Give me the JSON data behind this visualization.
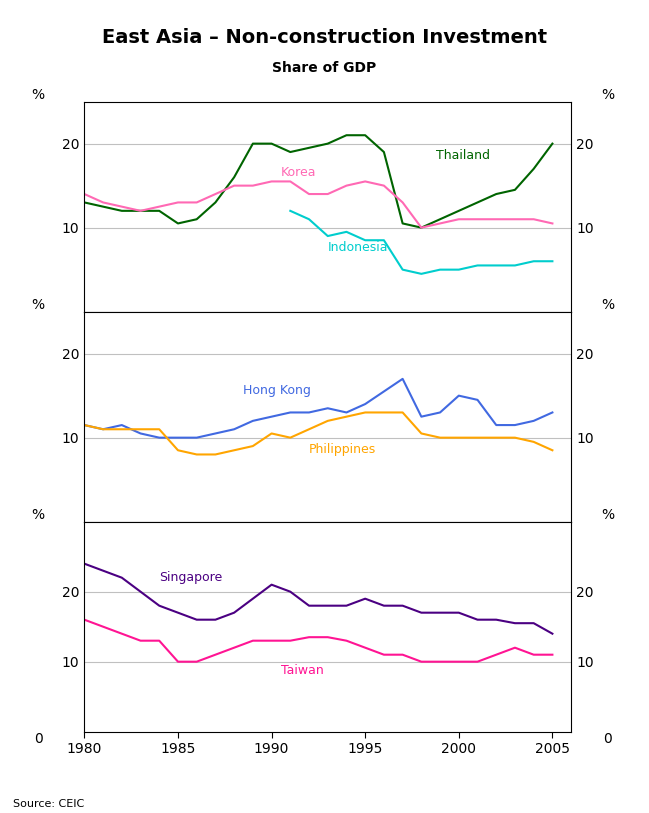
{
  "title": "East Asia – Non-construction Investment",
  "subtitle": "Share of GDP",
  "source": "Source: CEIC",
  "years": [
    1980,
    1981,
    1982,
    1983,
    1984,
    1985,
    1986,
    1987,
    1988,
    1989,
    1990,
    1991,
    1992,
    1993,
    1994,
    1995,
    1996,
    1997,
    1998,
    1999,
    2000,
    2001,
    2002,
    2003,
    2004,
    2005
  ],
  "thailand": [
    13,
    12.5,
    12,
    12,
    12,
    10.5,
    11,
    13,
    16,
    20,
    20,
    19,
    19.5,
    20,
    21,
    21,
    19,
    10.5,
    10,
    11,
    12,
    13,
    14,
    14.5,
    17,
    20
  ],
  "korea": [
    14,
    13,
    12.5,
    12,
    12.5,
    13,
    13,
    14,
    15,
    15,
    15.5,
    15.5,
    14,
    14,
    15,
    15.5,
    15,
    13,
    10,
    10.5,
    11,
    11,
    11,
    11,
    11,
    10.5
  ],
  "indonesia": [
    null,
    null,
    null,
    null,
    null,
    null,
    null,
    null,
    null,
    null,
    null,
    12,
    11,
    9,
    9.5,
    8.5,
    8.5,
    5,
    4.5,
    5,
    5,
    5.5,
    5.5,
    5.5,
    6,
    6
  ],
  "hong_kong": [
    11.5,
    11,
    11.5,
    10.5,
    10,
    10,
    10,
    10.5,
    11,
    12,
    12.5,
    13,
    13,
    13.5,
    13,
    14,
    15.5,
    17,
    12.5,
    13,
    15,
    14.5,
    11.5,
    11.5,
    12,
    13
  ],
  "philippines": [
    11.5,
    11,
    11,
    11,
    11,
    8.5,
    8,
    8,
    8.5,
    9,
    10.5,
    10,
    11,
    12,
    12.5,
    13,
    13,
    13,
    10.5,
    10,
    10,
    10,
    10,
    10,
    9.5,
    8.5
  ],
  "singapore": [
    24,
    23,
    22,
    20,
    18,
    17,
    16,
    16,
    17,
    19,
    21,
    20,
    18,
    18,
    18,
    19,
    18,
    18,
    17,
    17,
    17,
    16,
    16,
    15.5,
    15.5,
    14
  ],
  "taiwan": [
    16,
    15,
    14,
    13,
    13,
    10,
    10,
    11,
    12,
    13,
    13,
    13,
    13.5,
    13.5,
    13,
    12,
    11,
    11,
    10,
    10,
    10,
    10,
    11,
    12,
    11,
    11
  ],
  "panel1_ylim": [
    0,
    25
  ],
  "panel2_ylim": [
    0,
    25
  ],
  "panel3_ylim": [
    0,
    30
  ],
  "panel1_yticks": [
    10,
    20
  ],
  "panel2_yticks": [
    10,
    20
  ],
  "panel3_yticks": [
    10,
    20
  ],
  "thailand_color": "#006400",
  "korea_color": "#FF69B4",
  "indonesia_color": "#00CDCD",
  "hong_kong_color": "#4169E1",
  "philippines_color": "#FFA500",
  "singapore_color": "#4B0082",
  "taiwan_color": "#FF1493",
  "xlim": [
    1980,
    2006
  ],
  "xticks": [
    1980,
    1985,
    1990,
    1995,
    2000,
    2005
  ]
}
